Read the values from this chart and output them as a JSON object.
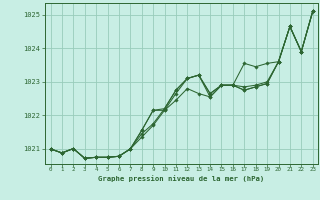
{
  "xlabel": "Graphe pression niveau de la mer (hPa)",
  "background_color": "#c8eee4",
  "grid_color": "#99ccbb",
  "line_color": "#2d6632",
  "marker_color": "#2d6632",
  "xlim": [
    -0.5,
    23.5
  ],
  "ylim": [
    1020.55,
    1025.35
  ],
  "yticks": [
    1021,
    1022,
    1023,
    1024,
    1025
  ],
  "xticks": [
    0,
    1,
    2,
    3,
    4,
    5,
    6,
    7,
    8,
    9,
    10,
    11,
    12,
    13,
    14,
    15,
    16,
    17,
    18,
    19,
    20,
    21,
    22,
    23
  ],
  "series": [
    [
      1021.0,
      1020.88,
      1021.01,
      1020.72,
      1020.75,
      1020.75,
      1020.78,
      1021.0,
      1021.45,
      1021.75,
      1022.2,
      1022.75,
      1023.1,
      1023.2,
      1022.65,
      1022.9,
      1022.9,
      1022.85,
      1022.9,
      1023.0,
      1023.6,
      1024.65,
      1023.9,
      1025.1
    ],
    [
      1021.0,
      1020.88,
      1021.01,
      1020.72,
      1020.75,
      1020.75,
      1020.78,
      1021.0,
      1021.55,
      1022.15,
      1022.2,
      1022.75,
      1023.1,
      1023.2,
      1022.65,
      1022.9,
      1022.9,
      1023.55,
      1023.45,
      1023.55,
      1023.6,
      1024.65,
      1023.9,
      1025.1
    ],
    [
      1021.0,
      1020.88,
      1021.01,
      1020.72,
      1020.75,
      1020.75,
      1020.78,
      1021.0,
      1021.35,
      1021.7,
      1022.15,
      1022.45,
      1022.8,
      1022.65,
      1022.55,
      1022.9,
      1022.9,
      1022.75,
      1022.85,
      1022.95,
      1023.6,
      1024.65,
      1023.9,
      1025.1
    ],
    [
      1021.0,
      1020.88,
      1021.01,
      1020.72,
      1020.75,
      1020.75,
      1020.78,
      1021.0,
      1021.55,
      1022.15,
      1022.15,
      1022.65,
      1023.1,
      1023.2,
      1022.55,
      1022.9,
      1022.9,
      1022.75,
      1022.85,
      1022.95,
      1023.6,
      1024.65,
      1023.9,
      1025.1
    ]
  ]
}
